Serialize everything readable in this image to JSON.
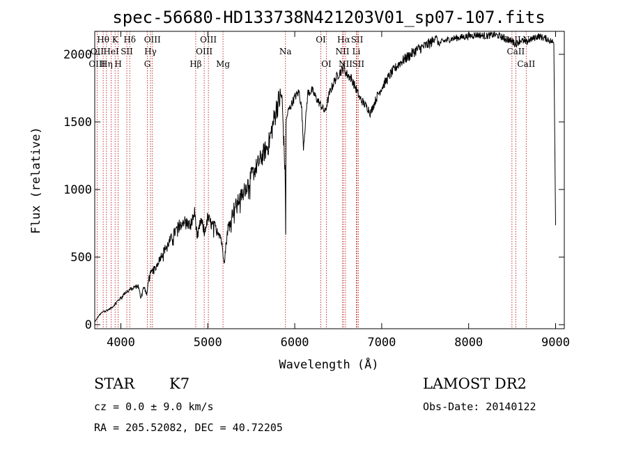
{
  "chart_data": {
    "type": "line",
    "title": "spec-56680-HD133738N421203V01_sp07-107.fits",
    "xlabel": "Wavelength (Å)",
    "ylabel": "Flux (relative)",
    "xlim": [
      3700,
      9100
    ],
    "ylim": [
      -30,
      2170
    ],
    "x_ticks": [
      4000,
      5000,
      6000,
      7000,
      8000,
      9000
    ],
    "y_ticks": [
      0,
      500,
      1000,
      1500,
      2000
    ],
    "grid": false,
    "series": [
      {
        "x": [
          3700,
          3750,
          3800,
          3850,
          3900,
          3950,
          4000,
          4050,
          4100,
          4150,
          4200,
          4230,
          4250,
          4270,
          4300,
          4320,
          4350,
          4400,
          4450,
          4500,
          4550,
          4600,
          4650,
          4700,
          4750,
          4800,
          4850,
          4880,
          4920,
          4960,
          5000,
          5050,
          5100,
          5150,
          5170,
          5190,
          5230,
          5300,
          5400,
          5500,
          5600,
          5700,
          5750,
          5800,
          5850,
          5870,
          5890,
          5896,
          5900,
          5920,
          5950,
          6000,
          6050,
          6080,
          6100,
          6150,
          6200,
          6250,
          6300,
          6350,
          6400,
          6450,
          6500,
          6540,
          6563,
          6580,
          6600,
          6650,
          6700,
          6750,
          6800,
          6850,
          6870,
          6900,
          6950,
          7000,
          7050,
          7100,
          7150,
          7200,
          7300,
          7400,
          7500,
          7600,
          7620,
          7650,
          7700,
          7800,
          7900,
          8000,
          8100,
          8200,
          8300,
          8400,
          8498,
          8542,
          8600,
          8662,
          8700,
          8800,
          8900,
          8980,
          9000
        ],
        "values": [
          20,
          70,
          100,
          110,
          130,
          170,
          200,
          240,
          260,
          280,
          290,
          200,
          260,
          280,
          220,
          350,
          390,
          430,
          500,
          560,
          610,
          670,
          720,
          780,
          770,
          740,
          840,
          650,
          780,
          700,
          800,
          740,
          730,
          660,
          560,
          480,
          720,
          870,
          980,
          1110,
          1230,
          1350,
          1500,
          1650,
          1720,
          1450,
          1100,
          700,
          1500,
          1580,
          1620,
          1690,
          1730,
          1600,
          1320,
          1720,
          1740,
          1680,
          1630,
          1580,
          1720,
          1800,
          1860,
          1890,
          1920,
          1880,
          1860,
          1830,
          1760,
          1680,
          1640,
          1600,
          1570,
          1620,
          1700,
          1760,
          1810,
          1860,
          1900,
          1940,
          1990,
          2040,
          2070,
          2110,
          2150,
          2080,
          2100,
          2120,
          2130,
          2140,
          2150,
          2140,
          2150,
          2130,
          2100,
          2080,
          2110,
          2090,
          2110,
          2140,
          2120,
          2090,
          740
        ]
      }
    ],
    "line_markers": [
      {
        "label": "Hθ",
        "x": 3797,
        "row": 0
      },
      {
        "label": "OII",
        "x": 3727,
        "row": 1
      },
      {
        "label": "OIII",
        "x": 3727,
        "row": 2
      },
      {
        "label": "K",
        "x": 3934,
        "row": 0
      },
      {
        "label": "HeI",
        "x": 3889,
        "row": 1
      },
      {
        "label": "Hη",
        "x": 3835,
        "row": 2
      },
      {
        "label": "Hδ",
        "x": 4102,
        "row": 0
      },
      {
        "label": "SII",
        "x": 4069,
        "row": 1
      },
      {
        "label": "H",
        "x": 3969,
        "row": 2
      },
      {
        "label": "OIII",
        "x": 4363,
        "row": 0
      },
      {
        "label": "Hγ",
        "x": 4341,
        "row": 1
      },
      {
        "label": "G",
        "x": 4305,
        "row": 2
      },
      {
        "label": "OIII",
        "x": 5007,
        "row": 0
      },
      {
        "label": "OIII",
        "x": 4959,
        "row": 1
      },
      {
        "label": "Hβ",
        "x": 4861,
        "row": 2
      },
      {
        "label": "Mg",
        "x": 5175,
        "row": 2
      },
      {
        "label": "Na",
        "x": 5893,
        "row": 1
      },
      {
        "label": "OI",
        "x": 6300,
        "row": 0
      },
      {
        "label": "OI",
        "x": 6364,
        "row": 2
      },
      {
        "label": "Hα",
        "x": 6563,
        "row": 0
      },
      {
        "label": "NII",
        "x": 6548,
        "row": 1
      },
      {
        "label": "NII",
        "x": 6584,
        "row": 2
      },
      {
        "label": "SII",
        "x": 6717,
        "row": 0
      },
      {
        "label": "Li",
        "x": 6708,
        "row": 1
      },
      {
        "label": "SII",
        "x": 6731,
        "row": 2
      },
      {
        "label": "CaII",
        "x": 8498,
        "row": 0
      },
      {
        "label": "N",
        "x": 8662,
        "row": 0
      },
      {
        "label": "CaII",
        "x": 8542,
        "row": 1
      },
      {
        "label": "CaII",
        "x": 8662,
        "row": 2
      }
    ]
  },
  "info": {
    "class": "STAR",
    "subclass": "K7",
    "survey": "LAMOST DR2",
    "cz": "cz = 0.0 ± 9.0 km/s",
    "obs_date": "Obs-Date: 20140122",
    "coords": "RA = 205.52082, DEC =  40.72205"
  }
}
